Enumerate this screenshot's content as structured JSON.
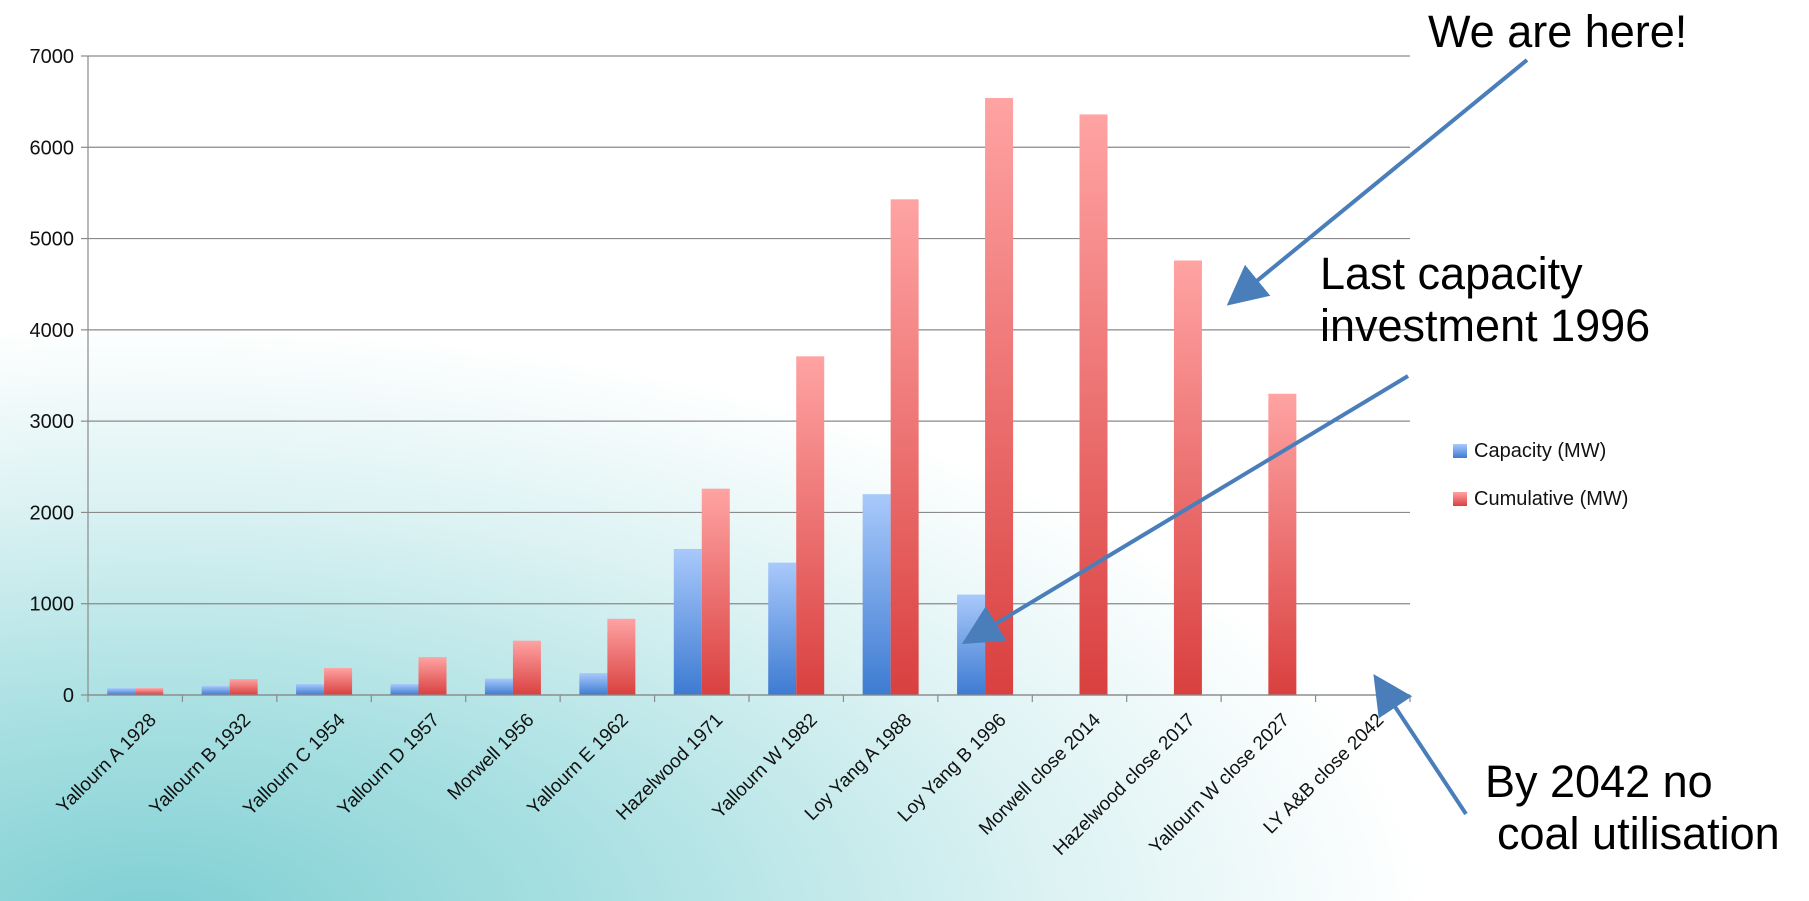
{
  "chart_data": {
    "type": "bar",
    "categories": [
      "Yallourn A  1928",
      "Yallourn B  1932",
      "Yallourn C  1954",
      "Yallourn D  1957",
      "Morwell  1956",
      "Yallourn E  1962",
      "Hazelwood  1971",
      "Yallourn W  1982",
      "Loy Yang A  1988",
      "Loy Yang B  1996",
      "Morwell close  2014",
      "Hazelwood close  2017",
      "Yallourn W close  2027",
      "LY A&B close  2042"
    ],
    "series": [
      {
        "name": "Capacity (MW)",
        "color": "#5b8fd8",
        "values": [
          75,
          100,
          120,
          120,
          180,
          240,
          1600,
          1450,
          2200,
          1100,
          0,
          0,
          0,
          0
        ]
      },
      {
        "name": "Cumulative (MW)",
        "color": "#d9403f",
        "values": [
          75,
          175,
          295,
          415,
          595,
          835,
          2260,
          3710,
          5430,
          6540,
          6360,
          4760,
          3300,
          0
        ]
      }
    ],
    "ylim": [
      0,
      7000
    ],
    "yticks": [
      0,
      1000,
      2000,
      3000,
      4000,
      5000,
      6000,
      7000
    ],
    "grid": true,
    "legend_position": "right",
    "title": "",
    "xlabel": "",
    "ylabel": ""
  },
  "annotations": {
    "here": "We are here!",
    "last_line1": "Last capacity",
    "last_line2": "investment 1996",
    "by2042_line1": "By 2042 no",
    "by2042_line2": "coal utilisation"
  },
  "arrow_color": "#4a7ebb"
}
